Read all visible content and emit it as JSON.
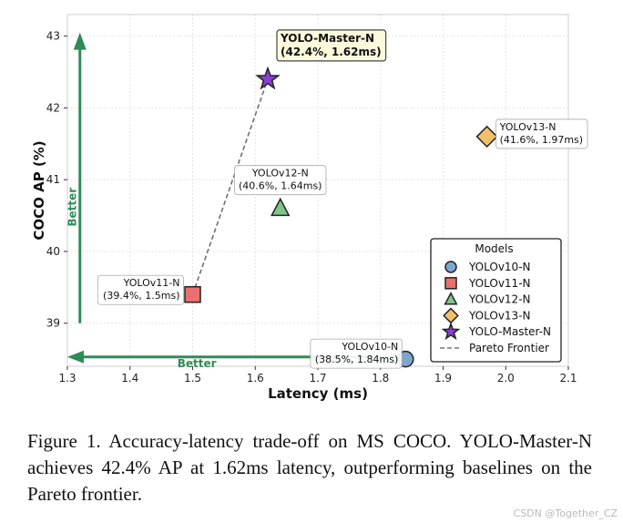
{
  "chart_data": {
    "type": "scatter",
    "xlabel": "Latency (ms)",
    "ylabel": "COCO AP (%)",
    "xlim": [
      1.3,
      2.1
    ],
    "ylim": [
      38.4,
      43.3
    ],
    "xticks": [
      "1.3",
      "1.4",
      "1.5",
      "1.6",
      "1.7",
      "1.8",
      "1.9",
      "2.0",
      "2.1"
    ],
    "yticks": [
      "39",
      "40",
      "41",
      "42",
      "43"
    ],
    "xtick_values": [
      1.3,
      1.4,
      1.5,
      1.6,
      1.7,
      1.8,
      1.9,
      2.0,
      2.1
    ],
    "ytick_values": [
      39,
      40,
      41,
      42,
      43
    ],
    "grid": true,
    "points": [
      {
        "name": "YOLOv10-N",
        "latency": 1.84,
        "ap": 38.5,
        "label": "(38.5%, 1.84ms)",
        "marker": "circle",
        "color": "#7ea6cf"
      },
      {
        "name": "YOLOv11-N",
        "latency": 1.5,
        "ap": 39.4,
        "label": "(39.4%, 1.5ms)",
        "marker": "square",
        "color": "#ea6f6f"
      },
      {
        "name": "YOLOv12-N",
        "latency": 1.64,
        "ap": 40.6,
        "label": "(40.6%, 1.64ms)",
        "marker": "triangle",
        "color": "#7fc58c"
      },
      {
        "name": "YOLOv13-N",
        "latency": 1.97,
        "ap": 41.6,
        "label": "(41.6%, 1.97ms)",
        "marker": "diamond",
        "color": "#f3c06a"
      },
      {
        "name": "YOLO-Master-N",
        "latency": 1.62,
        "ap": 42.4,
        "label": "(42.4%, 1.62ms)",
        "marker": "star",
        "color": "#8a3fd1"
      }
    ],
    "pareto_frontier": {
      "name": "Pareto Frontier",
      "x": [
        1.5,
        1.62
      ],
      "y": [
        39.4,
        42.4
      ]
    },
    "legend": {
      "title": "Models",
      "placement": "lower-right",
      "entries": [
        {
          "label": "YOLOv10-N",
          "marker": "circle",
          "color": "#7ea6cf"
        },
        {
          "label": "YOLOv11-N",
          "marker": "square",
          "color": "#ea6f6f"
        },
        {
          "label": "YOLOv12-N",
          "marker": "triangle",
          "color": "#7fc58c"
        },
        {
          "label": "YOLOv13-N",
          "marker": "diamond",
          "color": "#f3c06a"
        },
        {
          "label": "YOLO-Master-N",
          "marker": "star",
          "color": "#8a3fd1"
        },
        {
          "label": "Pareto Frontier",
          "marker": "dashed-line",
          "color": "#777777"
        }
      ]
    },
    "annotations": {
      "better_vertical": "Better",
      "better_horizontal": "Better",
      "arrow_color": "#2e8b57",
      "vertical_arrow": {
        "from_y": 39.0,
        "to_y": 43.0,
        "at_x": 1.32
      },
      "horizontal_arrow": {
        "from_x": 1.83,
        "to_x": 1.3,
        "at_y": 38.53
      }
    }
  },
  "caption": "Figure 1.  Accuracy-latency trade-off on MS COCO. YOLO-Master-N achieves 42.4% AP at 1.62ms latency, outperforming baselines on the Pareto frontier.",
  "watermark": "CSDN @Together_CZ"
}
